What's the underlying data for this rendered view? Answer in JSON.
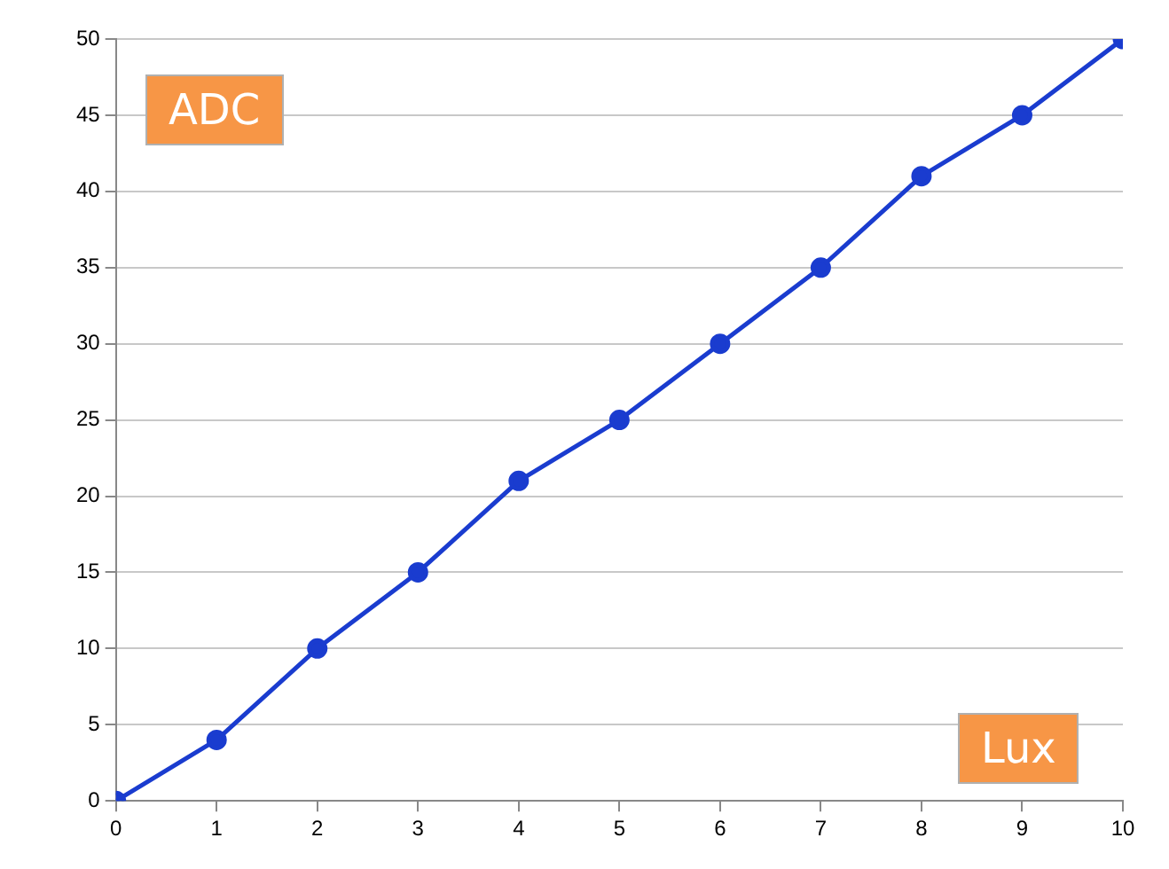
{
  "chart_data": {
    "type": "line",
    "xlabel": "Lux",
    "ylabel": "ADC",
    "x": [
      0,
      1,
      2,
      3,
      4,
      5,
      6,
      7,
      8,
      9,
      10
    ],
    "series": [
      {
        "color": "#1a3ccf",
        "values": [
          0,
          4,
          10,
          15,
          21,
          25,
          30,
          35,
          41,
          45,
          50
        ]
      }
    ],
    "xlim": [
      0,
      10
    ],
    "xticks": [
      0,
      1,
      2,
      3,
      4,
      5,
      6,
      7,
      8,
      9,
      10
    ],
    "ylim": [
      0,
      50
    ],
    "yticks": [
      0,
      5,
      10,
      15,
      20,
      25,
      30,
      35,
      40,
      45,
      50
    ],
    "grid": "y",
    "legend": false,
    "marker": "circle",
    "line_style": "solid"
  }
}
